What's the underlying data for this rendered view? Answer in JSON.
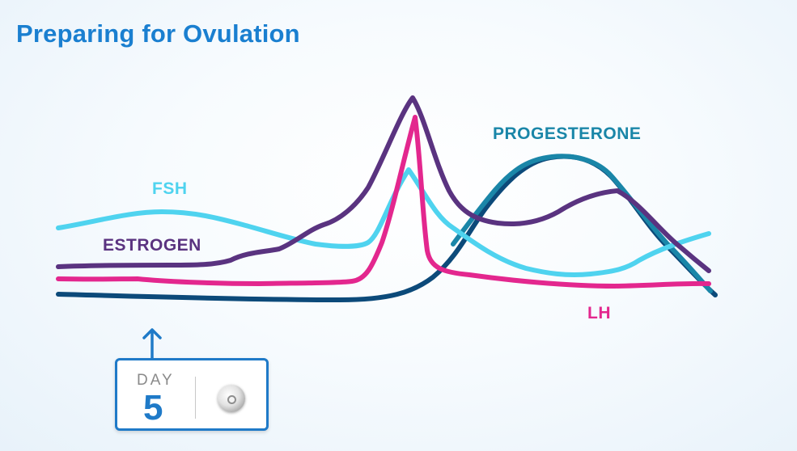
{
  "title": "Preparing for Ovulation",
  "hormones": {
    "fsh": {
      "label": "FSH",
      "color": "#4fd3ef"
    },
    "estrogen": {
      "label": "ESTROGEN",
      "color": "#5a3380"
    },
    "progesterone": {
      "label": "PROGESTERONE",
      "color": "#1a86a8"
    },
    "lh": {
      "label": "LH",
      "color": "#e3278e"
    },
    "baseline": {
      "color": "#0c4a7a"
    }
  },
  "day_indicator": {
    "label": "DAY",
    "number": "5",
    "icon": "follicle-icon",
    "accent_color": "#1f7ac8"
  }
}
